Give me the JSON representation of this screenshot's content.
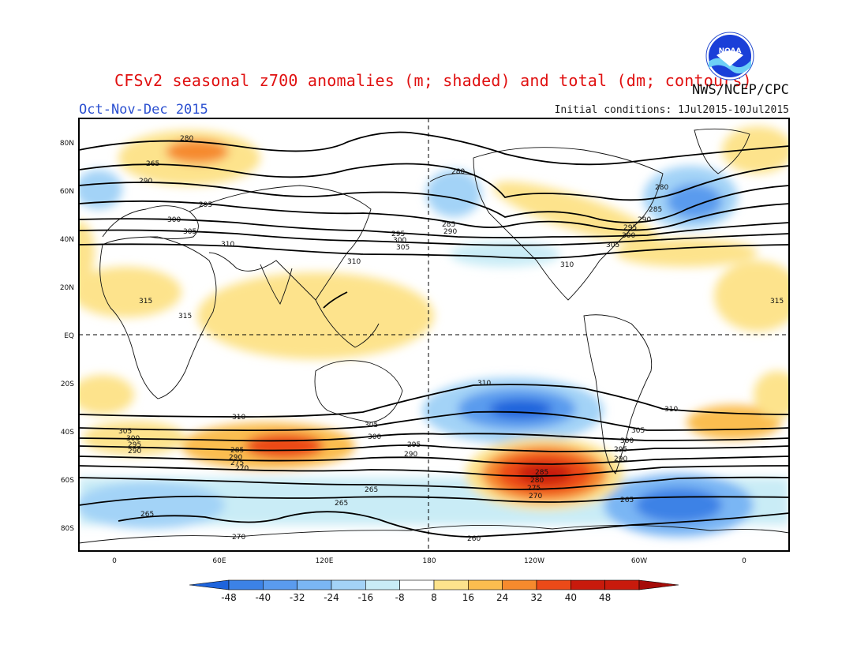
{
  "header": {
    "title": "CFSv2 seasonal z700 anomalies (m; shaded) and total (dm; contours)",
    "agency": "NWS/NCEP/CPC",
    "season": "Oct-Nov-Dec 2015",
    "initial_conditions": "Initial conditions: 1Jul2015-10Jul2015",
    "logo_text": "NOAA"
  },
  "axes": {
    "lat_labels": [
      "80N",
      "60N",
      "40N",
      "20N",
      "EQ",
      "20S",
      "40S",
      "60S",
      "80S"
    ],
    "lon_labels": [
      "0",
      "60E",
      "120E",
      "180",
      "120W",
      "60W",
      "0"
    ]
  },
  "contour_labels": [
    "280",
    "265",
    "290",
    "295",
    "300",
    "305",
    "310",
    "315",
    "280",
    "265",
    "290",
    "300",
    "305",
    "310",
    "315",
    "285",
    "295",
    "300",
    "305",
    "310",
    "310",
    "305",
    "300",
    "295",
    "290",
    "285",
    "280",
    "275",
    "270",
    "265",
    "260",
    "265",
    "270"
  ],
  "colorbar": {
    "ticks": [
      "-48",
      "-40",
      "-32",
      "-24",
      "-16",
      "-8",
      "8",
      "16",
      "24",
      "32",
      "40",
      "48"
    ],
    "colors": [
      "#1e64dc",
      "#3c82e6",
      "#5a9bee",
      "#7ab6f4",
      "#a3d3f7",
      "#c9ecf6",
      "#ffffff",
      "#fde38c",
      "#fbbd4f",
      "#f68a2d",
      "#ec4a18",
      "#c81a0c",
      "#a50c08"
    ]
  }
}
